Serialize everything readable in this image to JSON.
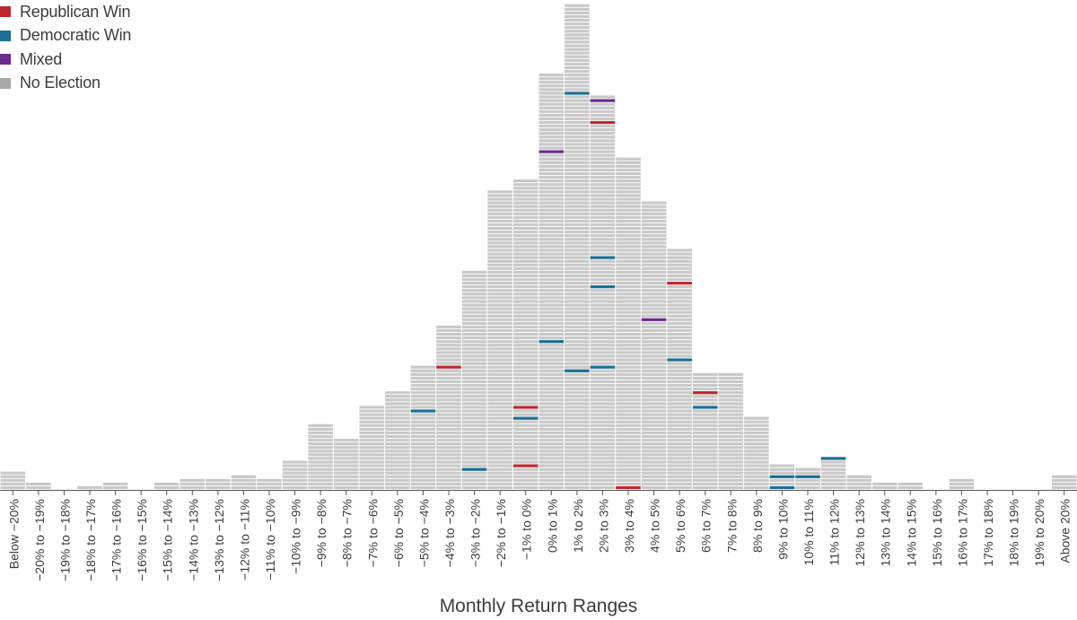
{
  "chart_data": {
    "type": "bar",
    "subtype": "stacked-unit-histogram",
    "xlabel": "Monthly Return Ranges",
    "ylabel": "",
    "categories": [
      "Below −20%",
      "−20% to −19%",
      "−19% to −18%",
      "−18% to −17%",
      "−17% to −16%",
      "−16% to −15%",
      "−15% to −14%",
      "−14% to −13%",
      "−13% to −12%",
      "−12% to −11%",
      "−11% to −10%",
      "−10% to −9%",
      "−9% to −8%",
      "−8% to −7%",
      "−7% to −6%",
      "−6% to −5%",
      "−5% to −4%",
      "−4% to −3%",
      "−3% to −2%",
      "−2% to −1%",
      "−1% to 0%",
      "0% to 1%",
      "1% to 2%",
      "2% to 3%",
      "3% to 4%",
      "4% to 5%",
      "5% to 6%",
      "6% to 7%",
      "7% to 8%",
      "8% to 9%",
      "9% to 10%",
      "10% to 11%",
      "11% to 12%",
      "12% to 13%",
      "13% to 14%",
      "14% to 15%",
      "15% to 16%",
      "16% to 17%",
      "17% to 18%",
      "18% to 19%",
      "19% to 20%",
      "Above 20%"
    ],
    "values": [
      5,
      2,
      0,
      1,
      2,
      0,
      2,
      3,
      3,
      4,
      3,
      8,
      18,
      14,
      23,
      27,
      34,
      45,
      60,
      82,
      85,
      114,
      133,
      108,
      91,
      79,
      66,
      32,
      32,
      20,
      7,
      6,
      9,
      4,
      2,
      2,
      0,
      3,
      0,
      0,
      0,
      4
    ],
    "highlights": [
      {
        "category": "−5% to −4%",
        "count_from_bottom": 22,
        "outcome": "Democratic Win"
      },
      {
        "category": "−4% to −3%",
        "count_from_bottom": 34,
        "outcome": "Republican Win"
      },
      {
        "category": "−3% to −2%",
        "count_from_bottom": 6,
        "outcome": "Democratic Win"
      },
      {
        "category": "−1% to 0%",
        "count_from_bottom": 23,
        "outcome": "Republican Win"
      },
      {
        "category": "−1% to 0%",
        "count_from_bottom": 20,
        "outcome": "Democratic Win"
      },
      {
        "category": "−1% to 0%",
        "count_from_bottom": 7,
        "outcome": "Republican Win"
      },
      {
        "category": "0% to 1%",
        "count_from_bottom": 93,
        "outcome": "Mixed"
      },
      {
        "category": "0% to 1%",
        "count_from_bottom": 41,
        "outcome": "Democratic Win"
      },
      {
        "category": "1% to 2%",
        "count_from_bottom": 109,
        "outcome": "Democratic Win"
      },
      {
        "category": "1% to 2%",
        "count_from_bottom": 33,
        "outcome": "Democratic Win"
      },
      {
        "category": "2% to 3%",
        "count_from_bottom": 107,
        "outcome": "Mixed"
      },
      {
        "category": "2% to 3%",
        "count_from_bottom": 101,
        "outcome": "Republican Win"
      },
      {
        "category": "2% to 3%",
        "count_from_bottom": 64,
        "outcome": "Democratic Win"
      },
      {
        "category": "2% to 3%",
        "count_from_bottom": 56,
        "outcome": "Democratic Win"
      },
      {
        "category": "2% to 3%",
        "count_from_bottom": 34,
        "outcome": "Democratic Win"
      },
      {
        "category": "3% to 4%",
        "count_from_bottom": 1,
        "outcome": "Republican Win"
      },
      {
        "category": "4% to 5%",
        "count_from_bottom": 47,
        "outcome": "Mixed"
      },
      {
        "category": "5% to 6%",
        "count_from_bottom": 57,
        "outcome": "Republican Win"
      },
      {
        "category": "5% to 6%",
        "count_from_bottom": 36,
        "outcome": "Democratic Win"
      },
      {
        "category": "6% to 7%",
        "count_from_bottom": 27,
        "outcome": "Republican Win"
      },
      {
        "category": "6% to 7%",
        "count_from_bottom": 23,
        "outcome": "Democratic Win"
      },
      {
        "category": "9% to 10%",
        "count_from_bottom": 4,
        "outcome": "Democratic Win"
      },
      {
        "category": "9% to 10%",
        "count_from_bottom": 1,
        "outcome": "Democratic Win"
      },
      {
        "category": "10% to 11%",
        "count_from_bottom": 4,
        "outcome": "Democratic Win"
      },
      {
        "category": "11% to 12%",
        "count_from_bottom": 9,
        "outcome": "Democratic Win"
      }
    ],
    "legend": [
      {
        "label": "Republican Win",
        "color": "#c0272d"
      },
      {
        "label": "Democratic Win",
        "color": "#1a6f93"
      },
      {
        "label": "Mixed",
        "color": "#6a2b8c"
      },
      {
        "label": "No Election",
        "color": "#a7a9ac"
      }
    ],
    "legend_position": "top-left",
    "grid": false
  },
  "colors": {
    "bar": "#c9c9c9",
    "axis": "#555555",
    "text": "#3c3c3c"
  }
}
